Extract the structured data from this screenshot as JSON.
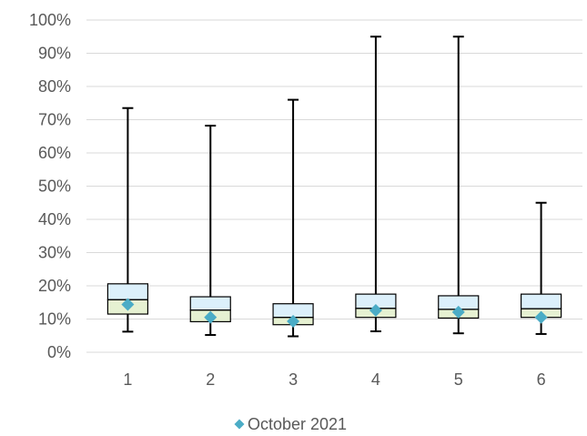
{
  "chart_data": {
    "type": "boxplot",
    "title": "",
    "xlabel": "",
    "ylabel": "",
    "ylim": [
      0,
      100
    ],
    "y_ticks": [
      "0%",
      "10%",
      "20%",
      "30%",
      "40%",
      "50%",
      "60%",
      "70%",
      "80%",
      "90%",
      "100%"
    ],
    "y_tick_values": [
      0,
      10,
      20,
      30,
      40,
      50,
      60,
      70,
      80,
      90,
      100
    ],
    "grid": true,
    "legend_position": "bottom",
    "categories": [
      "1",
      "2",
      "3",
      "4",
      "5",
      "6"
    ],
    "boxes": [
      {
        "category": "1",
        "min": 6.2,
        "q1": 11.5,
        "median": 15.8,
        "q3": 20.6,
        "max": 73.5
      },
      {
        "category": "2",
        "min": 5.2,
        "q1": 9.2,
        "median": 12.7,
        "q3": 16.7,
        "max": 68.2
      },
      {
        "category": "3",
        "min": 4.8,
        "q1": 8.3,
        "median": 10.5,
        "q3": 14.6,
        "max": 76.0
      },
      {
        "category": "4",
        "min": 6.3,
        "q1": 10.5,
        "median": 13.2,
        "q3": 17.5,
        "max": 95.0
      },
      {
        "category": "5",
        "min": 5.7,
        "q1": 10.3,
        "median": 12.9,
        "q3": 17.0,
        "max": 95.0
      },
      {
        "category": "6",
        "min": 5.5,
        "q1": 10.5,
        "median": 13.1,
        "q3": 17.5,
        "max": 45.0
      }
    ],
    "series": [
      {
        "name": "October 2021",
        "values": [
          14.4,
          10.5,
          9.3,
          12.6,
          12.1,
          10.5
        ]
      }
    ],
    "colors": {
      "box_upper": "#dcf0fb",
      "box_lower": "#e6f1d2",
      "box_stroke": "#000000",
      "whisker": "#000000",
      "gridline": "#d9d9d9",
      "marker": "#4bacc6",
      "axis_text": "#595959"
    }
  }
}
